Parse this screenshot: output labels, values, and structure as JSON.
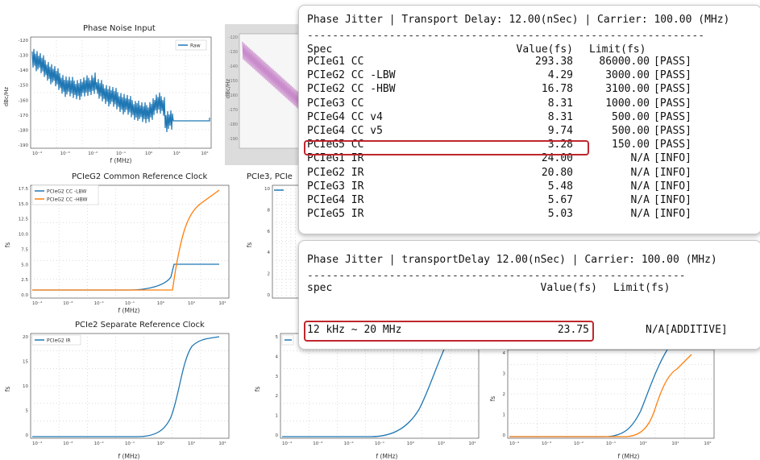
{
  "plots": {
    "phase_noise": {
      "title": "Phase Noise Input",
      "ylabel": "dBc/Hz",
      "xlabel": "f (MHz)",
      "legend": "Raw",
      "yticks": [
        "-120",
        "-130",
        "-140",
        "-150",
        "-160",
        "-170",
        "-180",
        "-190"
      ],
      "xticks": [
        "10⁻⁴",
        "10⁻³",
        "10⁻²",
        "10⁻¹",
        "10⁰",
        "10¹",
        "10²"
      ]
    },
    "gray_plot": {
      "ylabel": "dBc/Hz",
      "yticks": [
        "-120",
        "-130",
        "-140",
        "-150",
        "-160",
        "-170",
        "-180",
        "-190"
      ]
    },
    "pcie2_common": {
      "title": "PCIeG2 Common Reference Clock",
      "ylabel": "fs",
      "xlabel": "f (MHz)",
      "legend": [
        "PCIeG2 CC -LBW",
        "PCIeG2 CC -HBW"
      ],
      "yticks": [
        "17.5",
        "15.0",
        "12.5",
        "10.0",
        "7.5",
        "5.0",
        "2.5",
        "0.0"
      ],
      "xticks": [
        "10⁻⁴",
        "10⁻³",
        "10⁻²",
        "10⁻¹",
        "10⁰",
        "10¹",
        "10²"
      ]
    },
    "pcie3_common": {
      "title": "PCIe3, PCIe",
      "yticks": [
        "10",
        "8",
        "6",
        "4",
        "2",
        "0"
      ]
    },
    "pcie2_separate": {
      "title": "PCIe2 Separate Reference Clock",
      "ylabel": "fs",
      "xlabel": "f (MHz)",
      "legend": "PCIeG2 IR",
      "yticks": [
        "20",
        "15",
        "10",
        "5",
        "0"
      ],
      "xticks": [
        "10⁻⁴",
        "10⁻³",
        "10⁻²",
        "10⁻¹",
        "10⁰",
        "10¹",
        "10²"
      ]
    },
    "pcie3_separate": {
      "ylabel": "fs",
      "xlabel": "f (MHz)",
      "yticks": [
        "5",
        "4",
        "3",
        "2",
        "1",
        "0"
      ],
      "xticks": [
        "10⁻⁴",
        "10⁻³",
        "10⁻²",
        "10⁻¹",
        "10⁰",
        "10¹",
        "10²"
      ]
    },
    "pcie45_separate": {
      "ylabel": "fs",
      "xlabel": "f (MHz)",
      "yticks": [
        "4",
        "3",
        "2",
        "1",
        "0"
      ],
      "xticks": [
        "10⁻⁴",
        "10⁻³",
        "10⁻²",
        "10⁻¹",
        "10⁰",
        "10¹",
        "10²"
      ]
    }
  },
  "colors": {
    "blue": "#1f77b4",
    "orange": "#ff7f0e",
    "purple": "#c98bcb",
    "highlight": "#c0262d"
  },
  "panel1": {
    "header": "Phase Jitter | Transport Delay: 12.00(nSec) | Carrier: 100.00 (MHz)",
    "rule": "---------------------------------------------------------------",
    "cols": {
      "spec": "Spec",
      "value": "Value(fs)",
      "limit": "Limit(fs)"
    },
    "rows": [
      {
        "spec": "PCIeG1 CC",
        "value": "293.38",
        "limit": "86000.00",
        "status": "[PASS]"
      },
      {
        "spec": "PCIeG2 CC -LBW",
        "value": "4.29",
        "limit": "3000.00",
        "status": "[PASS]"
      },
      {
        "spec": "PCIeG2 CC -HBW",
        "value": "16.78",
        "limit": "3100.00",
        "status": "[PASS]"
      },
      {
        "spec": "PCIeG3 CC",
        "value": "8.31",
        "limit": "1000.00",
        "status": "[PASS]"
      },
      {
        "spec": "PCIeG4 CC v4",
        "value": "8.31",
        "limit": "500.00",
        "status": "[PASS]"
      },
      {
        "spec": "PCIeG4 CC v5",
        "value": "9.74",
        "limit": "500.00",
        "status": "[PASS]"
      },
      {
        "spec": "PCIeG5 CC",
        "value": "3.28",
        "limit": "150.00",
        "status": "[PASS]"
      },
      {
        "spec": "PCIeG1 IR",
        "value": "24.00",
        "limit": "N/A",
        "status": "[INFO]"
      },
      {
        "spec": "PCIeG2 IR",
        "value": "20.80",
        "limit": "N/A",
        "status": "[INFO]"
      },
      {
        "spec": "PCIeG3 IR",
        "value": "5.48",
        "limit": "N/A",
        "status": "[INFO]"
      },
      {
        "spec": "PCIeG4 IR",
        "value": "5.67",
        "limit": "N/A",
        "status": "[INFO]"
      },
      {
        "spec": "PCIeG5 IR",
        "value": "5.03",
        "limit": "N/A",
        "status": "[INFO]"
      }
    ]
  },
  "panel2": {
    "header": "Phase Jitter | transportDelay 12.00(nSec) | Carrier: 100.00 (MHz)",
    "rule": "------------------------------------------------------------",
    "cols": {
      "spec": "spec",
      "value": "Value(fs)",
      "limit": "Limit(fs)"
    },
    "row": {
      "spec": "12 kHz ~ 20 MHz",
      "value": "23.75",
      "limit": "N/A[ADDITIVE]"
    }
  }
}
